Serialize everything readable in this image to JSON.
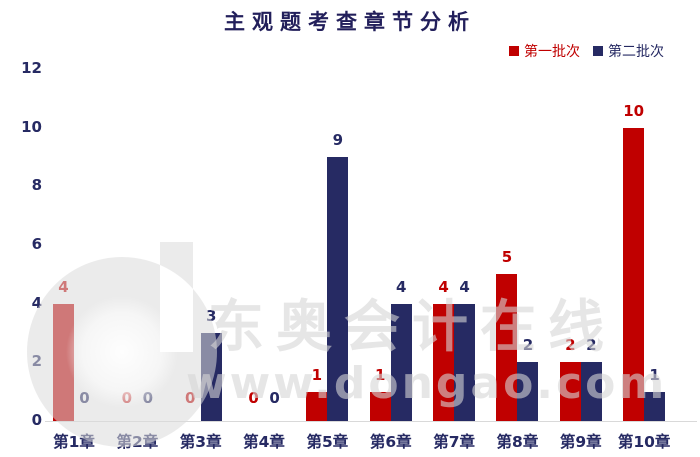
{
  "title": "主观题考查章节分析",
  "legend": {
    "items": [
      {
        "label": "第一批次",
        "color": "#c00000"
      },
      {
        "label": "第二批次",
        "color": "#262a63"
      }
    ]
  },
  "chart_data": {
    "type": "bar",
    "title": "主观题考查章节分析",
    "categories": [
      "第1章",
      "第2章",
      "第3章",
      "第4章",
      "第5章",
      "第6章",
      "第7章",
      "第8章",
      "第9章",
      "第10章"
    ],
    "series": [
      {
        "name": "第一批次",
        "color": "#c00000",
        "values": [
          4,
          0,
          0,
          0,
          1,
          1,
          4,
          5,
          2,
          10
        ]
      },
      {
        "name": "第二批次",
        "color": "#262a63",
        "values": [
          0,
          0,
          3,
          0,
          9,
          4,
          4,
          2,
          2,
          1
        ]
      }
    ],
    "xlabel": "",
    "ylabel": "",
    "ylim": [
      0,
      12
    ],
    "yticks": [
      0,
      2,
      4,
      6,
      8,
      10,
      12
    ],
    "grid": false,
    "legend_position": "top-right",
    "data_labels": true
  },
  "watermark": {
    "logo": "dongao-d-logo",
    "line1": "东奥会计在线",
    "line2": "www.dongao.com"
  },
  "colors": {
    "title_text": "#221f5b",
    "axis_text": "#262a63",
    "axis_line": "#d9d9d9",
    "series1": "#c00000",
    "series2": "#262a63",
    "watermark_gray": "#e9e9e9",
    "background": "#ffffff"
  }
}
